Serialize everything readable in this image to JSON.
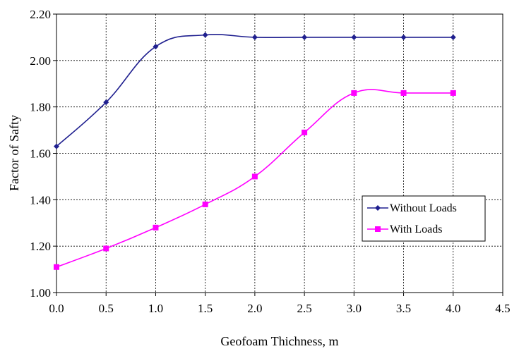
{
  "chart_data": {
    "type": "line",
    "xlabel": "Geofoam Thichness,  m",
    "ylabel": "Factor of Safty",
    "xlim": [
      0,
      4.5
    ],
    "ylim": [
      1.0,
      2.2
    ],
    "x_ticks": [
      "0.0",
      "0.5",
      "1.0",
      "1.5",
      "2.0",
      "2.5",
      "3.0",
      "3.5",
      "4.0",
      "4.5"
    ],
    "y_ticks": [
      "1.00",
      "1.20",
      "1.40",
      "1.60",
      "1.80",
      "2.00",
      "2.20"
    ],
    "grid": true,
    "legend_position": "right-center",
    "series": [
      {
        "name": "Without Loads",
        "color": "#1f1f8f",
        "marker": "diamond",
        "x": [
          0.0,
          0.5,
          1.0,
          1.5,
          2.0,
          2.5,
          3.0,
          3.5,
          4.0
        ],
        "values": [
          1.63,
          1.82,
          2.06,
          2.11,
          2.1,
          2.1,
          2.1,
          2.1,
          2.1
        ]
      },
      {
        "name": "With Loads",
        "color": "#ff00ff",
        "marker": "square",
        "x": [
          0.0,
          0.5,
          1.0,
          1.5,
          2.0,
          2.5,
          3.0,
          3.5,
          4.0
        ],
        "values": [
          1.11,
          1.19,
          1.28,
          1.38,
          1.5,
          1.69,
          1.86,
          1.86,
          1.86
        ]
      }
    ]
  }
}
